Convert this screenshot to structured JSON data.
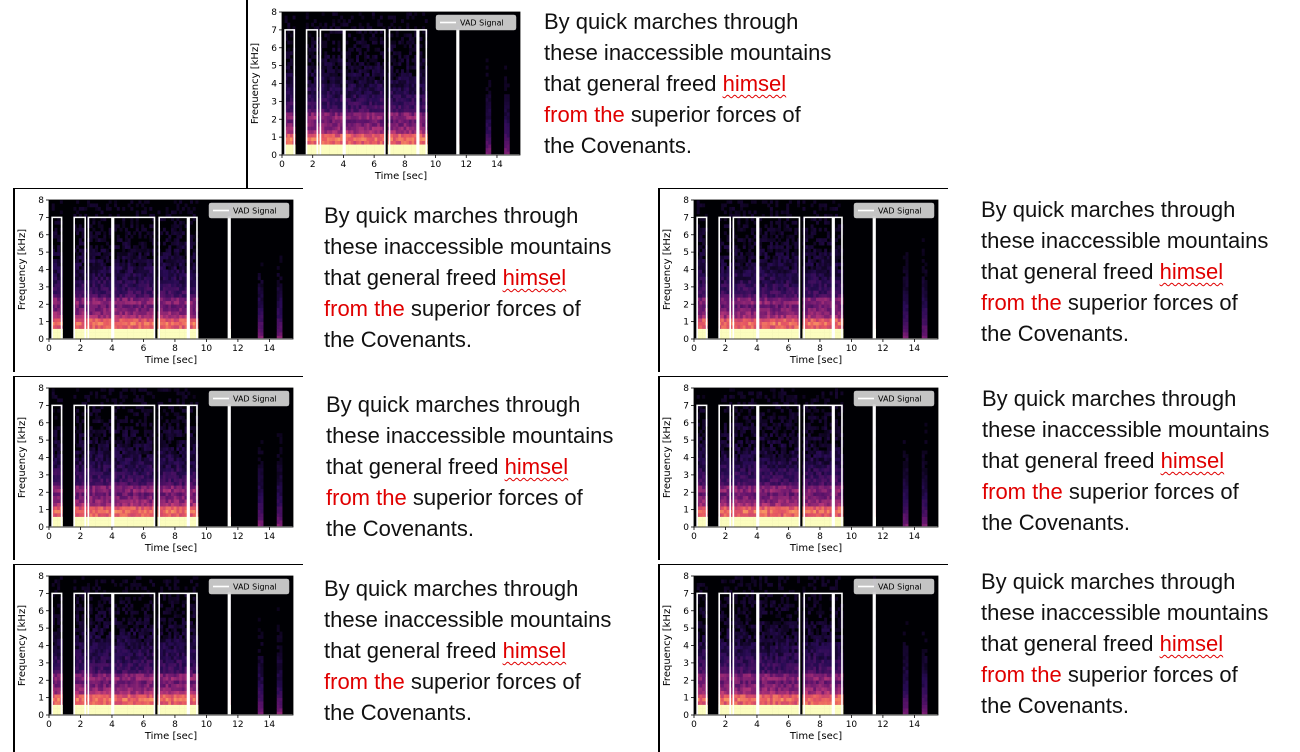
{
  "chart_data": {
    "type": "heatmap",
    "title": "",
    "xlabel": "Time [sec]",
    "ylabel": "Frequency [kHz]",
    "xlim": [
      0,
      15.5
    ],
    "ylim": [
      0,
      8
    ],
    "x_ticks": [
      "0",
      "2",
      "4",
      "6",
      "8",
      "10",
      "12",
      "14"
    ],
    "y_ticks": [
      "0",
      "1",
      "2",
      "3",
      "4",
      "5",
      "6",
      "7",
      "8"
    ],
    "colormap": "magma",
    "grid": false,
    "legend": {
      "label": "VAD Signal",
      "placement": "top-right"
    },
    "series": [
      {
        "name": "VAD Signal",
        "color": "#ffffff",
        "segments": [
          [
            0.2,
            0.8
          ],
          [
            1.6,
            2.3
          ],
          [
            2.5,
            4.0
          ],
          [
            4.1,
            6.7
          ],
          [
            7.0,
            8.8
          ],
          [
            8.9,
            9.4
          ],
          [
            11.4,
            11.5
          ]
        ],
        "high_level_khz": 7,
        "low_level_khz": 0
      }
    ],
    "panel_count": 7
  },
  "caption": {
    "line1": "By quick marches through",
    "line2": "these inaccessible mountains",
    "line3_prefix": "that general freed ",
    "line3_red": "himsel",
    "line4_red": "from the",
    "line4_suffix": " superior forces of",
    "line5": "the Covenants."
  },
  "colors": {
    "background": "#000004",
    "vad_line": "#ffffff",
    "highlight_text": "#e00000"
  }
}
